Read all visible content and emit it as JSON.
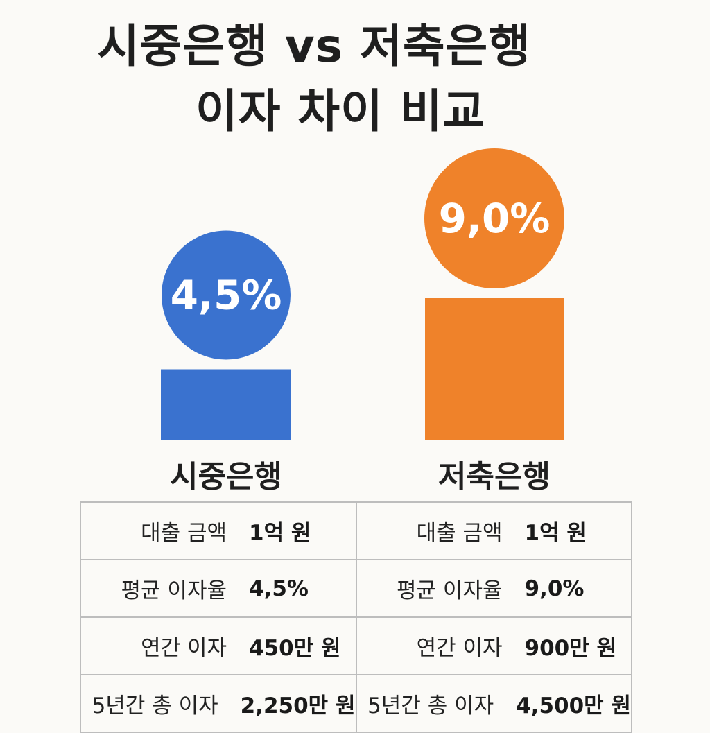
{
  "title": {
    "line1": "시중은행 vs 저축은행",
    "line2": "이자 차이 비교"
  },
  "colors": {
    "commercial": "#3a72cf",
    "savings": "#ef822a",
    "background": "#fbfaf7"
  },
  "chart_data": {
    "type": "bar",
    "title": "시중은행 vs 저축은행 이자 차이 비교",
    "categories": [
      "시중은행",
      "저축은행"
    ],
    "values": [
      4.5,
      9.0
    ],
    "value_labels": [
      "4,5%",
      "9,0%"
    ],
    "unit": "%",
    "colors": [
      "#3a72cf",
      "#ef822a"
    ]
  },
  "table": {
    "columns": [
      {
        "rows": [
          {
            "label": "대출 금액",
            "value": "1억 원"
          },
          {
            "label": "평균 이자율",
            "value": "4,5%"
          },
          {
            "label": "연간 이자",
            "value": "450만 원"
          },
          {
            "label": "5년간 총 이자",
            "value": "2,250만 원"
          }
        ]
      },
      {
        "rows": [
          {
            "label": "대출 금액",
            "value": "1억 원"
          },
          {
            "label": "평균 이자율",
            "value": "9,0%"
          },
          {
            "label": "연간 이자",
            "value": "900만 원"
          },
          {
            "label": "5년간 총 이자",
            "value": "4,500만 원"
          }
        ]
      }
    ]
  }
}
